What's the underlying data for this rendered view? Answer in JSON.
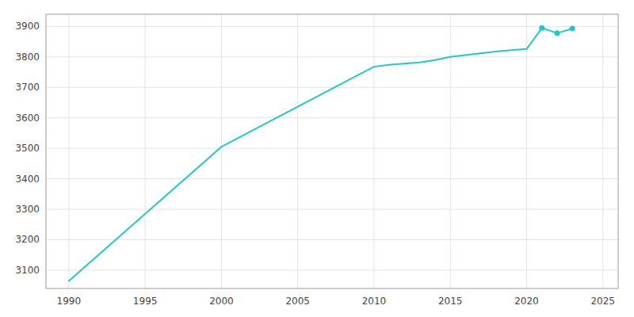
{
  "chart_data": {
    "type": "line",
    "x": [
      1990,
      2000,
      2010,
      2011,
      2012,
      2013,
      2014,
      2015,
      2016,
      2017,
      2018,
      2019,
      2020,
      2021,
      2022,
      2023
    ],
    "series": [
      {
        "type": "line",
        "color": "#22c8c8",
        "values": [
          3065,
          3505,
          3768,
          3774,
          3778,
          3782,
          3790,
          3800,
          3806,
          3812,
          3818,
          3822,
          3826,
          3895,
          3878,
          3893
        ]
      },
      {
        "type": "scatter",
        "color": "#22c8c8",
        "marker": "circle",
        "values": [
          null,
          null,
          null,
          null,
          null,
          null,
          null,
          null,
          null,
          null,
          null,
          null,
          null,
          3895,
          3878,
          3893
        ]
      }
    ],
    "xlim": [
      1988.5,
      2026
    ],
    "ylim": [
      3040,
      3940
    ],
    "xticks": [
      1990,
      1995,
      2000,
      2005,
      2010,
      2015,
      2020,
      2025
    ],
    "yticks": [
      3100,
      3200,
      3300,
      3400,
      3500,
      3600,
      3700,
      3800,
      3900
    ],
    "grid": true
  }
}
